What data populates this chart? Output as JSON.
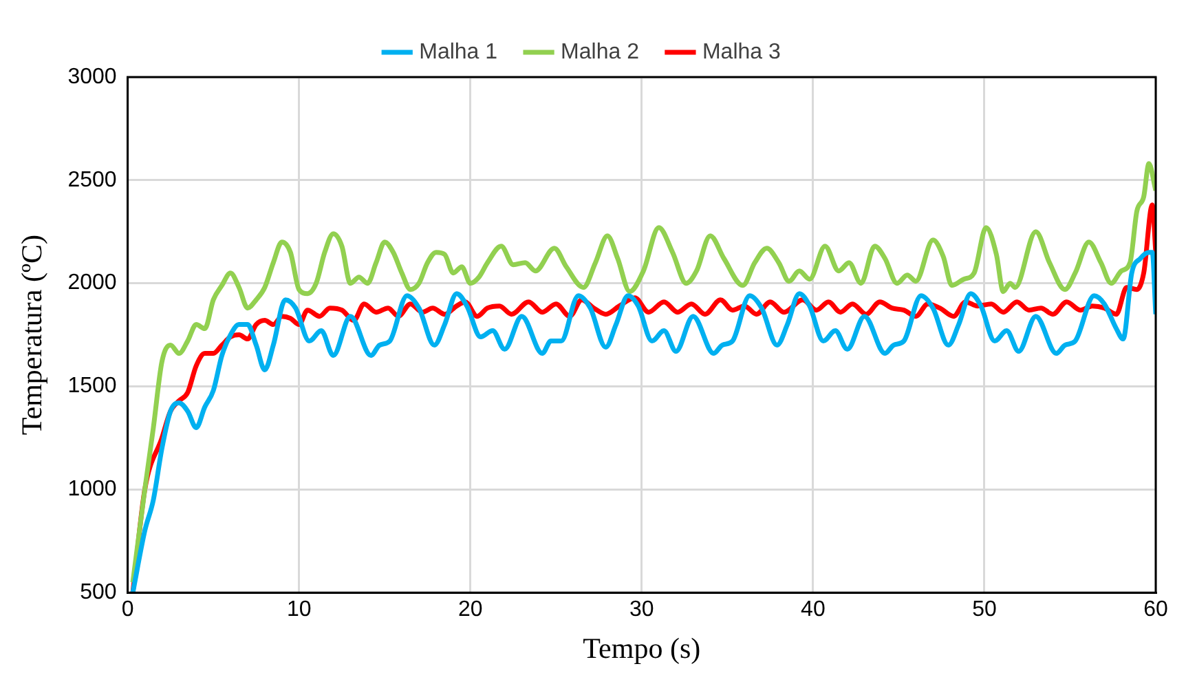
{
  "chart_data": {
    "type": "line",
    "xlabel": "Tempo (s)",
    "ylabel": "Temperatura (ºC)",
    "xlim": [
      0,
      60
    ],
    "xticks": [
      0,
      10,
      20,
      30,
      40,
      50,
      60
    ],
    "ylim": [
      500,
      3000
    ],
    "yticks": [
      500,
      1000,
      1500,
      2000,
      2500,
      3000
    ],
    "grid": true,
    "legend": "top",
    "marker": "none",
    "line_style": "solid",
    "series": [
      {
        "name": "Malha 1",
        "color": "#00b0f0",
        "x": [
          0.3,
          1,
          1.5,
          2,
          2.5,
          3,
          3.5,
          4,
          4.5,
          5,
          5.5,
          6,
          6.5,
          7,
          7.5,
          8,
          8.5,
          9.2,
          9.8,
          10.6,
          11.3,
          12,
          13,
          14.2,
          14.7,
          15.3,
          16.3,
          17,
          17.9,
          18.5,
          19.2,
          19.8,
          20.6,
          21.3,
          22,
          23,
          24.2,
          24.7,
          25.3,
          26.3,
          27,
          27.9,
          28.5,
          29.2,
          29.8,
          30.6,
          31.3,
          32,
          33,
          34.2,
          34.7,
          35.3,
          36.3,
          37,
          37.9,
          38.5,
          39.2,
          39.8,
          40.6,
          41.3,
          42,
          43,
          44.2,
          44.7,
          45.3,
          46.3,
          47,
          47.9,
          48.5,
          49.2,
          49.8,
          50.6,
          51.3,
          52,
          53,
          54.2,
          54.7,
          55.3,
          56.4,
          57,
          57.7,
          58.1,
          58.6,
          59.1,
          59.6,
          59.8,
          60
        ],
        "values": [
          500,
          800,
          950,
          1200,
          1380,
          1420,
          1380,
          1300,
          1400,
          1480,
          1650,
          1750,
          1800,
          1800,
          1700,
          1580,
          1700,
          1920,
          1880,
          1720,
          1770,
          1650,
          1840,
          1650,
          1700,
          1720,
          1940,
          1880,
          1700,
          1800,
          1950,
          1890,
          1740,
          1770,
          1680,
          1840,
          1660,
          1720,
          1720,
          1940,
          1880,
          1690,
          1800,
          1940,
          1890,
          1720,
          1770,
          1670,
          1840,
          1660,
          1700,
          1720,
          1940,
          1880,
          1700,
          1800,
          1950,
          1890,
          1720,
          1770,
          1680,
          1840,
          1660,
          1700,
          1720,
          1940,
          1880,
          1700,
          1800,
          1950,
          1890,
          1720,
          1770,
          1670,
          1840,
          1660,
          1700,
          1720,
          1940,
          1900,
          1780,
          1730,
          2050,
          2120,
          2150,
          2150,
          1850
        ]
      },
      {
        "name": "Malha 2",
        "color": "#92d050",
        "x": [
          0.3,
          1,
          1.5,
          2,
          2.5,
          3,
          3.5,
          4,
          4.5,
          5,
          5.5,
          6,
          6.5,
          7,
          7.5,
          8,
          8.5,
          9,
          9.5,
          10,
          10.5,
          11,
          11.5,
          12,
          12.5,
          13,
          13.5,
          14,
          14.5,
          15,
          15.5,
          16,
          16.5,
          17,
          17.5,
          18,
          18.5,
          19,
          19.5,
          20,
          20.5,
          21,
          21.8,
          22.5,
          23.2,
          23.8,
          24.9,
          25.6,
          26.6,
          27.3,
          28,
          28.6,
          29.3,
          30.1,
          31,
          31.8,
          32.6,
          33.2,
          34,
          34.8,
          35.9,
          36.6,
          37.3,
          38,
          38.6,
          39.2,
          39.8,
          40.7,
          41.5,
          42.1,
          42.8,
          43.6,
          44.2,
          44.9,
          45.5,
          46,
          47,
          47.6,
          48.1,
          48.8,
          49.4,
          50.1,
          50.7,
          51.1,
          51.5,
          51.8,
          53,
          53.8,
          54.7,
          55.3,
          56.1,
          56.8,
          57.4,
          58,
          58.5,
          58.9,
          59.3,
          59.6,
          60
        ],
        "values": [
          550,
          1000,
          1300,
          1620,
          1700,
          1660,
          1720,
          1800,
          1780,
          1920,
          1990,
          2050,
          1980,
          1880,
          1920,
          1980,
          2100,
          2200,
          2150,
          1970,
          1950,
          2000,
          2150,
          2240,
          2180,
          2000,
          2030,
          2000,
          2100,
          2200,
          2150,
          2050,
          1970,
          2000,
          2100,
          2150,
          2140,
          2050,
          2080,
          2000,
          2030,
          2100,
          2180,
          2090,
          2100,
          2060,
          2170,
          2080,
          1980,
          2100,
          2230,
          2120,
          1960,
          2060,
          2270,
          2150,
          2000,
          2060,
          2230,
          2120,
          1990,
          2100,
          2170,
          2100,
          2010,
          2060,
          2020,
          2180,
          2060,
          2100,
          2000,
          2180,
          2120,
          2000,
          2040,
          2010,
          2210,
          2130,
          1990,
          2020,
          2050,
          2270,
          2140,
          1960,
          2000,
          1980,
          2250,
          2100,
          1970,
          2050,
          2200,
          2100,
          2000,
          2060,
          2100,
          2350,
          2420,
          2580,
          2450
        ]
      },
      {
        "name": "Malha 3",
        "color": "#ff0000",
        "x": [
          0.3,
          1,
          2,
          2.5,
          3,
          3.5,
          4,
          4.5,
          5,
          5.5,
          6,
          6.5,
          7,
          7.5,
          8,
          8.5,
          9,
          9.5,
          10,
          10.5,
          11.2,
          11.8,
          12.5,
          13.2,
          13.8,
          14.5,
          15.2,
          15.8,
          16.5,
          17.2,
          17.8,
          18.5,
          19.2,
          19.7,
          20.4,
          21,
          21.7,
          22.4,
          23.4,
          24.2,
          25,
          25.8,
          26.5,
          27.2,
          27.9,
          28.7,
          29.6,
          30.4,
          31.3,
          32.1,
          32.9,
          33.7,
          34.6,
          35.3,
          36,
          36.7,
          37.5,
          38.3,
          39.4,
          40.2,
          40.9,
          41.6,
          42.3,
          43.1,
          43.9,
          44.6,
          45.3,
          46,
          46.7,
          47.4,
          48.2,
          48.9,
          49.6,
          50.4,
          51.1,
          51.9,
          52.6,
          53.3,
          54,
          54.8,
          55.6,
          56.3,
          57,
          57.7,
          58.3,
          58.9,
          59.3,
          59.8,
          60
        ],
        "values": [
          500,
          1000,
          1250,
          1380,
          1430,
          1470,
          1600,
          1660,
          1660,
          1700,
          1740,
          1750,
          1730,
          1800,
          1820,
          1800,
          1840,
          1830,
          1800,
          1870,
          1840,
          1880,
          1870,
          1820,
          1900,
          1860,
          1880,
          1840,
          1900,
          1860,
          1880,
          1850,
          1890,
          1910,
          1840,
          1880,
          1890,
          1850,
          1910,
          1860,
          1900,
          1840,
          1920,
          1880,
          1850,
          1890,
          1930,
          1860,
          1910,
          1860,
          1900,
          1850,
          1920,
          1870,
          1890,
          1850,
          1910,
          1860,
          1920,
          1870,
          1910,
          1860,
          1900,
          1850,
          1910,
          1880,
          1870,
          1840,
          1900,
          1880,
          1840,
          1910,
          1890,
          1900,
          1860,
          1910,
          1870,
          1880,
          1850,
          1910,
          1870,
          1890,
          1880,
          1850,
          1980,
          1970,
          2050,
          2380,
          2150
        ]
      }
    ]
  }
}
